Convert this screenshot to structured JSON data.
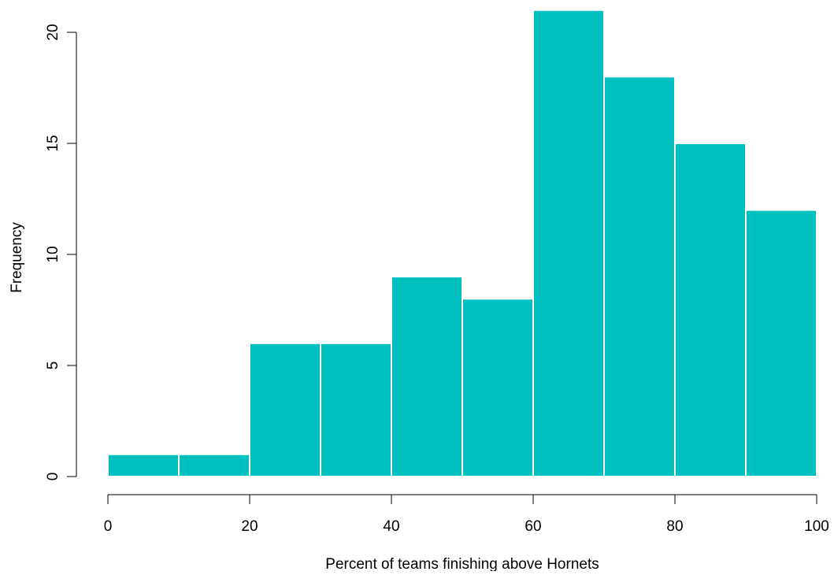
{
  "chart_data": {
    "type": "bar",
    "subtype": "histogram",
    "title": "",
    "xlabel": "Percent of teams finishing above Hornets",
    "ylabel": "Frequency",
    "bins": [
      {
        "from": 0,
        "to": 10,
        "count": 1
      },
      {
        "from": 10,
        "to": 20,
        "count": 1
      },
      {
        "from": 20,
        "to": 30,
        "count": 6
      },
      {
        "from": 30,
        "to": 40,
        "count": 6
      },
      {
        "from": 40,
        "to": 50,
        "count": 9
      },
      {
        "from": 50,
        "to": 60,
        "count": 8
      },
      {
        "from": 60,
        "to": 70,
        "count": 21
      },
      {
        "from": 70,
        "to": 80,
        "count": 18
      },
      {
        "from": 80,
        "to": 90,
        "count": 15
      },
      {
        "from": 90,
        "to": 100,
        "count": 12
      }
    ],
    "xlim": [
      0,
      100
    ],
    "ylim": [
      0,
      20
    ],
    "xticks": [
      "0",
      "20",
      "40",
      "60",
      "80",
      "100"
    ],
    "yticks": [
      "0",
      "5",
      "10",
      "15",
      "20"
    ],
    "grid": false,
    "legend": "none",
    "bar_color": "#00C0C0",
    "bar_border_color": "#ffffff",
    "axis_color": "#000000"
  }
}
